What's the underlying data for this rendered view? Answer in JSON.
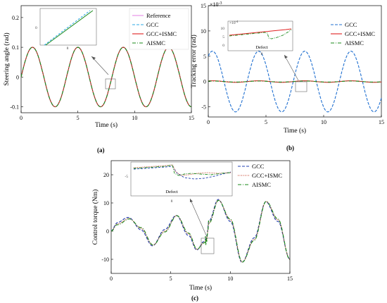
{
  "chart_data": [
    {
      "panel_label": "(a)",
      "type": "line",
      "xlabel": "Time (s)",
      "ylabel": "Steering angle (rad)",
      "xlim": [
        0,
        15
      ],
      "ylim": [
        -0.12,
        0.24
      ],
      "xticks": [
        "0",
        "5",
        "10",
        "15"
      ],
      "yticks": [
        "-0.1",
        "0",
        "0.1",
        "0.2"
      ],
      "xtick_values": [
        0,
        5,
        10,
        15
      ],
      "ytick_values": [
        -0.1,
        0,
        0.1,
        0.2
      ],
      "grid": false,
      "legend": "top-right",
      "series": [
        {
          "name": "Reference",
          "color": "#e68ae6",
          "dash": "solid",
          "amplitude": 0.1,
          "period": 4,
          "phase": 0
        },
        {
          "name": "GCC",
          "color": "#2ea8e6",
          "dash": "dashed",
          "amplitude": 0.1,
          "period": 4,
          "phase": 0
        },
        {
          "name": "GCC+ISMC",
          "color": "#e02020",
          "dash": "solid",
          "amplitude": 0.1,
          "period": 4,
          "phase": 0
        },
        {
          "name": "AISMC",
          "color": "#1a8a1a",
          "dash": "dashdot",
          "amplitude": 0.1,
          "period": 4,
          "phase": 0
        }
      ],
      "inset": {
        "tick_labels": [
          "0",
          "8"
        ],
        "zoom_x": 8
      }
    },
    {
      "panel_label": "(b)",
      "type": "line",
      "xlabel": "Time (s)",
      "ylabel": "Tracking error (rad)",
      "y_multiplier": "×10",
      "y_multiplier_exp": "-3",
      "xlim": [
        0,
        15
      ],
      "ylim": [
        -7,
        15
      ],
      "xticks": [
        "0",
        "5",
        "10",
        "15"
      ],
      "yticks": [
        "-5",
        "0",
        "5",
        "10",
        "15"
      ],
      "xtick_values": [
        0,
        5,
        10,
        15
      ],
      "ytick_values": [
        -5,
        0,
        5,
        10,
        15
      ],
      "grid": false,
      "legend": "top-right",
      "series": [
        {
          "name": "GCC",
          "color": "#1f6fd0",
          "dash": "dashed",
          "amplitude": 6,
          "period": 4,
          "phase": 1
        },
        {
          "name": "GCC+ISMC",
          "color": "#e02020",
          "dash": "solid",
          "amplitude": 0.15,
          "period": 4,
          "phase": 1
        },
        {
          "name": "AISMC",
          "color": "#1a8a1a",
          "dash": "dashdot",
          "amplitude": 0.1,
          "period": 4,
          "phase": 1
        }
      ],
      "inset": {
        "tick_labels": [
          "10",
          "5",
          "0",
          "8"
        ],
        "multiplier": "×10",
        "multiplier_exp": "-4",
        "annotation": "Defect"
      }
    },
    {
      "panel_label": "(c)",
      "type": "line",
      "xlabel": "Time (s)",
      "ylabel": "Control torque (Nm)",
      "xlim": [
        0,
        15
      ],
      "ylim": [
        -15,
        25
      ],
      "xticks": [
        "0",
        "5",
        "10",
        "15"
      ],
      "yticks": [
        "-10",
        "0",
        "10",
        "20"
      ],
      "xtick_values": [
        0,
        5,
        10,
        15
      ],
      "ytick_values": [
        -10,
        0,
        10,
        20
      ],
      "grid": false,
      "legend": "top-right",
      "series": [
        {
          "name": "GCC",
          "color": "#1f3fb0",
          "dash": "dashed"
        },
        {
          "name": "GCC+ISMC",
          "color": "#c0301a",
          "dash": "dotted"
        },
        {
          "name": "AISMC",
          "color": "#1a8a1a",
          "dash": "dashdot"
        }
      ],
      "envelope_points": {
        "x": [
          0,
          0.5,
          1.5,
          2.5,
          3.5,
          4.5,
          5.5,
          6.5,
          7.2,
          7.8,
          8.0,
          8.2,
          9.0,
          10.0,
          11.0,
          12.0,
          13.0,
          14.0,
          15.0
        ],
        "y": [
          0,
          2.5,
          4.5,
          1.0,
          -5.0,
          0.0,
          5.5,
          -1.0,
          -6.5,
          -4.0,
          -3.0,
          3.0,
          11.0,
          4.0,
          -11.0,
          -3.0,
          10.5,
          4.0,
          -10.0
        ]
      },
      "inset": {
        "tick_labels": [
          "-5",
          "8"
        ],
        "annotation": "Defect"
      }
    }
  ]
}
